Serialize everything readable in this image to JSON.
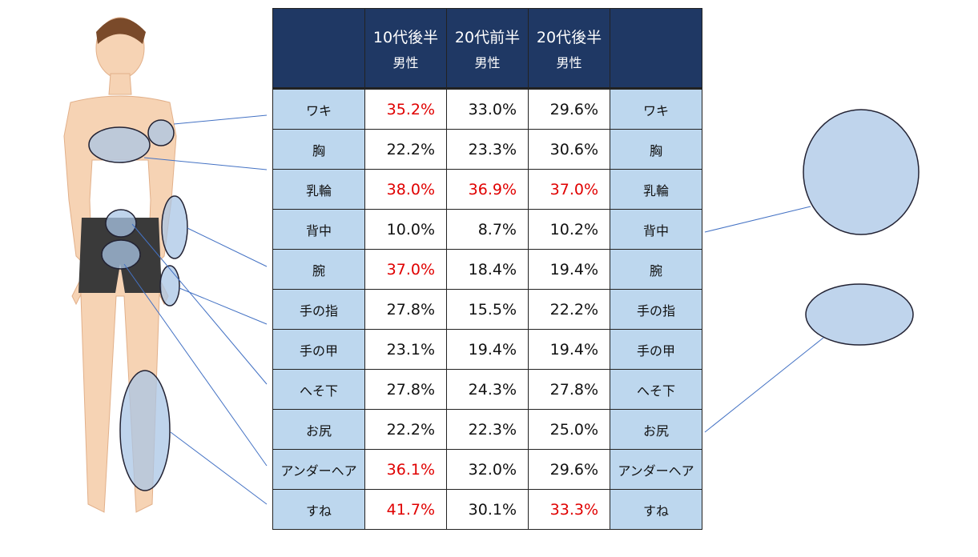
{
  "table": {
    "header": [
      {
        "line1": "10代後半",
        "line2": "男性"
      },
      {
        "line1": "20代前半",
        "line2": "男性"
      },
      {
        "line1": "20代後半",
        "line2": "男性"
      }
    ],
    "highlight_color": "#e00000",
    "rows": [
      {
        "label": "ワキ",
        "values": [
          "35.2%",
          "33.0%",
          "29.6%"
        ],
        "highlight": [
          true,
          false,
          false
        ]
      },
      {
        "label": "胸",
        "values": [
          "22.2%",
          "23.3%",
          "30.6%"
        ],
        "highlight": [
          false,
          false,
          false
        ]
      },
      {
        "label": "乳輪",
        "values": [
          "38.0%",
          "36.9%",
          "37.0%"
        ],
        "highlight": [
          true,
          true,
          true
        ]
      },
      {
        "label": "背中",
        "values": [
          "10.0%",
          "8.7%",
          "10.2%"
        ],
        "highlight": [
          false,
          false,
          false
        ]
      },
      {
        "label": "腕",
        "values": [
          "37.0%",
          "18.4%",
          "19.4%"
        ],
        "highlight": [
          true,
          false,
          false
        ]
      },
      {
        "label": "手の指",
        "values": [
          "27.8%",
          "15.5%",
          "22.2%"
        ],
        "highlight": [
          false,
          false,
          false
        ]
      },
      {
        "label": "手の甲",
        "values": [
          "23.1%",
          "19.4%",
          "19.4%"
        ],
        "highlight": [
          false,
          false,
          false
        ]
      },
      {
        "label": "へそ下",
        "values": [
          "27.8%",
          "24.3%",
          "27.8%"
        ],
        "highlight": [
          false,
          false,
          false
        ]
      },
      {
        "label": "お尻",
        "values": [
          "22.2%",
          "22.3%",
          "25.0%"
        ],
        "highlight": [
          false,
          false,
          false
        ]
      },
      {
        "label": "アンダーヘア",
        "values": [
          "36.1%",
          "32.0%",
          "29.6%"
        ],
        "highlight": [
          true,
          false,
          false
        ]
      },
      {
        "label": "すね",
        "values": [
          "41.7%",
          "30.1%",
          "33.3%"
        ],
        "highlight": [
          true,
          false,
          true
        ]
      }
    ]
  }
}
